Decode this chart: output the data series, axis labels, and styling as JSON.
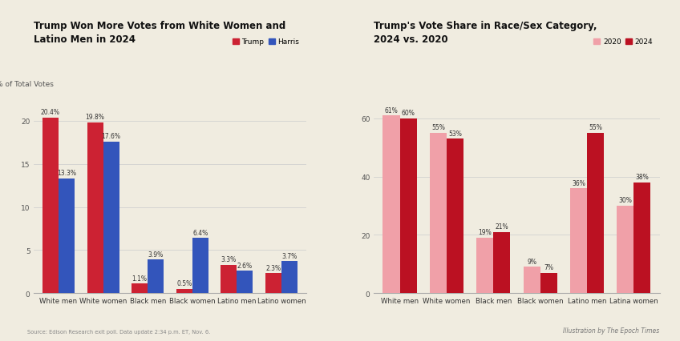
{
  "bg_color": "#f0ece0",
  "chart1": {
    "title": "Trump Won More Votes from White Women and\nLatino Men in 2024",
    "ylabel": "% of Total Votes",
    "categories": [
      "White men",
      "White women",
      "Black men",
      "Black women",
      "Latino men",
      "Latino women"
    ],
    "trump": [
      20.4,
      19.8,
      1.1,
      0.5,
      3.3,
      2.3
    ],
    "harris": [
      13.3,
      17.6,
      3.9,
      6.4,
      2.6,
      3.7
    ],
    "trump_color": "#cc2233",
    "harris_color": "#3355bb",
    "ylim": [
      0,
      23
    ],
    "yticks": [
      0,
      5,
      10,
      15,
      20
    ],
    "source": "Source: Edison Research exit poll. Data update 2:34 p.m. ET, Nov. 6.",
    "legend_labels": [
      "Trump",
      "Harris"
    ]
  },
  "chart2": {
    "title": "Trump's Vote Share in Race/Sex Category,\n2024 vs. 2020",
    "categories": [
      "White men",
      "White women",
      "Black men",
      "Black women",
      "Latino men",
      "Latina women"
    ],
    "val2020": [
      61,
      55,
      19,
      9,
      36,
      30
    ],
    "val2024": [
      60,
      53,
      21,
      7,
      55,
      38
    ],
    "color2020": "#f0a0a8",
    "color2024": "#bb1122",
    "ylim": [
      0,
      68
    ],
    "yticks": [
      0,
      20,
      40,
      60
    ],
    "legend_labels": [
      "2020",
      "2024"
    ],
    "credit": "Illustration by The Epoch Times"
  }
}
